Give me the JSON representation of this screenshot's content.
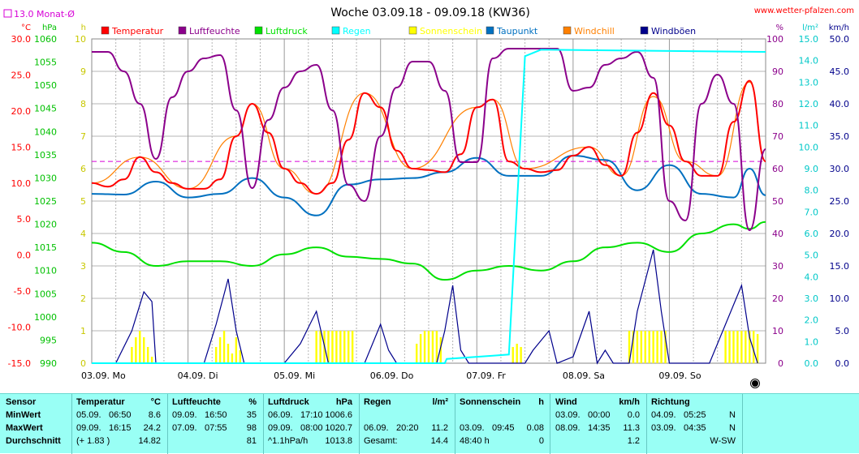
{
  "title": "Woche 03.09.18 - 09.09.18 (KW36)",
  "website": "www.wetter-pfalzen.com",
  "monthly_avg_label": "13.0 Monat-Ø",
  "units": {
    "temp": "°C",
    "press": "hPa",
    "hours": "h",
    "percent": "%",
    "rain": "l/m²",
    "wind": "km/h"
  },
  "colors": {
    "temperatur": "#ff0000",
    "luftfeuchte": "#8b008b",
    "luftdruck": "#00e000",
    "regen": "#00ffff",
    "sonnenschein": "#ffff00",
    "taupunkt": "#0070c0",
    "windchill": "#ff8000",
    "windboeen": "#00008b",
    "grid": "#b4b4b4",
    "avg_line": "#d700d7",
    "stats_bg": "#99fff5"
  },
  "chart_data": {
    "type": "line",
    "title": "Woche 03.09.18 - 09.09.18 (KW36)",
    "x_labels": [
      "03.09. Mo",
      "04.09. Di",
      "05.09. Mi",
      "06.09. Do",
      "07.09. Fr",
      "08.09. Sa",
      "09.09. So"
    ],
    "x_range_hours": [
      0,
      168
    ],
    "grid": true,
    "legend_position": "top",
    "axes": {
      "temperatur": {
        "unit": "°C",
        "ticks": [
          "30.0",
          "25.0",
          "20.0",
          "15.0",
          "10.0",
          "5.0",
          "0.0",
          "-5.0",
          "-10.0",
          "-15.0"
        ],
        "range": [
          -15,
          30
        ]
      },
      "luftdruck": {
        "unit": "hPa",
        "ticks": [
          "1060",
          "1055",
          "1050",
          "1045",
          "1040",
          "1035",
          "1030",
          "1025",
          "1020",
          "1015",
          "1010",
          "1005",
          "1000",
          "995",
          "990"
        ],
        "range": [
          990,
          1060
        ]
      },
      "sonnenschein": {
        "unit": "h",
        "ticks": [
          "10",
          "9",
          "8",
          "7",
          "6",
          "5",
          "4",
          "3",
          "2",
          "1",
          "0"
        ],
        "range": [
          0,
          10
        ]
      },
      "luftfeuchte": {
        "unit": "%",
        "ticks": [
          "100",
          "90",
          "80",
          "70",
          "60",
          "50",
          "40",
          "30",
          "20",
          "10",
          "0"
        ],
        "range": [
          0,
          100
        ]
      },
      "regen": {
        "unit": "l/m²",
        "ticks": [
          "15.0",
          "14.0",
          "13.0",
          "12.0",
          "11.0",
          "10.0",
          "9.0",
          "8.0",
          "7.0",
          "6.0",
          "5.0",
          "4.0",
          "3.0",
          "2.0",
          "1.0",
          "0.0"
        ],
        "range": [
          0,
          15
        ]
      },
      "wind": {
        "unit": "km/h",
        "ticks": [
          "50.0",
          "45.0",
          "40.0",
          "35.0",
          "30.0",
          "25.0",
          "20.0",
          "15.0",
          "10.0",
          "5.0",
          "0.0"
        ],
        "range": [
          0,
          50
        ]
      }
    },
    "monthly_avg_temp": 13.0,
    "series": [
      {
        "name": "Temperatur",
        "axis": "temperatur",
        "points": [
          [
            0,
            10.0
          ],
          [
            4,
            9.5
          ],
          [
            8,
            10.5
          ],
          [
            12,
            13.6
          ],
          [
            16,
            11.5
          ],
          [
            20,
            10.0
          ],
          [
            24,
            9.2
          ],
          [
            28,
            9.2
          ],
          [
            32,
            10.5
          ],
          [
            36,
            16.5
          ],
          [
            40,
            21.0
          ],
          [
            44,
            17.0
          ],
          [
            48,
            12.0
          ],
          [
            52,
            10.0
          ],
          [
            56,
            8.5
          ],
          [
            60,
            10.0
          ],
          [
            64,
            16.0
          ],
          [
            68,
            22.5
          ],
          [
            72,
            20.5
          ],
          [
            76,
            14.5
          ],
          [
            80,
            12.0
          ],
          [
            84,
            11.8
          ],
          [
            88,
            11.5
          ],
          [
            92,
            14.0
          ],
          [
            96,
            20.5
          ],
          [
            100,
            21.6
          ],
          [
            104,
            13.0
          ],
          [
            108,
            12.0
          ],
          [
            112,
            11.5
          ],
          [
            116,
            11.8
          ],
          [
            120,
            13.8
          ],
          [
            124,
            15.0
          ],
          [
            128,
            12.5
          ],
          [
            132,
            11.0
          ],
          [
            136,
            17.0
          ],
          [
            140,
            22.5
          ],
          [
            144,
            18.0
          ],
          [
            148,
            13.0
          ],
          [
            152,
            11.0
          ],
          [
            156,
            11.0
          ],
          [
            160,
            18.5
          ],
          [
            164,
            24.2
          ],
          [
            168,
            13.0
          ]
        ]
      },
      {
        "name": "Luftfeuchte",
        "axis": "luftfeuchte",
        "points": [
          [
            0,
            96
          ],
          [
            4,
            96
          ],
          [
            8,
            90
          ],
          [
            12,
            80
          ],
          [
            16,
            63
          ],
          [
            20,
            82
          ],
          [
            24,
            90
          ],
          [
            28,
            94
          ],
          [
            32,
            95
          ],
          [
            36,
            78
          ],
          [
            40,
            54
          ],
          [
            44,
            75
          ],
          [
            48,
            85
          ],
          [
            52,
            90
          ],
          [
            56,
            92
          ],
          [
            60,
            78
          ],
          [
            64,
            55
          ],
          [
            68,
            50
          ],
          [
            72,
            70
          ],
          [
            76,
            85
          ],
          [
            80,
            93
          ],
          [
            84,
            93
          ],
          [
            88,
            84
          ],
          [
            92,
            62
          ],
          [
            96,
            62
          ],
          [
            100,
            94
          ],
          [
            104,
            97
          ],
          [
            108,
            97
          ],
          [
            112,
            97
          ],
          [
            116,
            97
          ],
          [
            120,
            84
          ],
          [
            124,
            85
          ],
          [
            128,
            92
          ],
          [
            132,
            94
          ],
          [
            136,
            96
          ],
          [
            140,
            88
          ],
          [
            144,
            50
          ],
          [
            148,
            44
          ],
          [
            152,
            80
          ],
          [
            156,
            89
          ],
          [
            160,
            80
          ],
          [
            164,
            41
          ],
          [
            168,
            66
          ]
        ]
      },
      {
        "name": "Luftdruck",
        "axis": "luftdruck",
        "points": [
          [
            0,
            1016
          ],
          [
            8,
            1014
          ],
          [
            16,
            1011
          ],
          [
            24,
            1012
          ],
          [
            32,
            1012
          ],
          [
            40,
            1011
          ],
          [
            48,
            1013.5
          ],
          [
            56,
            1015
          ],
          [
            64,
            1013
          ],
          [
            72,
            1012.5
          ],
          [
            80,
            1011.5
          ],
          [
            88,
            1008
          ],
          [
            96,
            1010
          ],
          [
            104,
            1011
          ],
          [
            112,
            1010
          ],
          [
            120,
            1012
          ],
          [
            128,
            1015
          ],
          [
            136,
            1016
          ],
          [
            144,
            1014
          ],
          [
            152,
            1018
          ],
          [
            160,
            1020
          ],
          [
            164,
            1019
          ],
          [
            168,
            1020.5
          ]
        ]
      },
      {
        "name": "Regen",
        "axis": "regen",
        "points": [
          [
            0,
            0
          ],
          [
            88,
            0
          ],
          [
            88.5,
            0.2
          ],
          [
            100,
            0.35
          ],
          [
            104,
            0.4
          ],
          [
            108,
            14.2
          ],
          [
            112,
            14.5
          ],
          [
            168,
            14.4
          ]
        ]
      },
      {
        "name": "Taupunkt",
        "axis": "temperatur",
        "points": [
          [
            0,
            8.5
          ],
          [
            8,
            8.4
          ],
          [
            16,
            10.2
          ],
          [
            24,
            8.0
          ],
          [
            32,
            8.5
          ],
          [
            40,
            10.7
          ],
          [
            48,
            8.0
          ],
          [
            56,
            5.5
          ],
          [
            64,
            9.8
          ],
          [
            72,
            10.5
          ],
          [
            80,
            10.7
          ],
          [
            88,
            11.5
          ],
          [
            96,
            13.5
          ],
          [
            104,
            11.0
          ],
          [
            112,
            11.0
          ],
          [
            120,
            13.8
          ],
          [
            128,
            13.2
          ],
          [
            136,
            9.0
          ],
          [
            144,
            12.5
          ],
          [
            152,
            8.5
          ],
          [
            160,
            8.0
          ],
          [
            164,
            12.0
          ],
          [
            168,
            8.3
          ]
        ]
      },
      {
        "name": "Windchill",
        "axis": "temperatur",
        "points": [
          [
            0,
            10.0
          ],
          [
            12,
            13.6
          ],
          [
            24,
            9.2
          ],
          [
            36,
            16.5
          ],
          [
            40,
            21.0
          ],
          [
            48,
            12.0
          ],
          [
            56,
            8.5
          ],
          [
            68,
            22.5
          ],
          [
            80,
            12.0
          ],
          [
            96,
            20.5
          ],
          [
            100,
            21.6
          ],
          [
            108,
            12.0
          ],
          [
            124,
            15.0
          ],
          [
            132,
            11.0
          ],
          [
            140,
            22.0
          ],
          [
            148,
            13.0
          ],
          [
            156,
            11.0
          ],
          [
            164,
            24.0
          ],
          [
            168,
            13.0
          ]
        ]
      },
      {
        "name": "Windböen",
        "axis": "wind",
        "points": [
          [
            0,
            0
          ],
          [
            6,
            0
          ],
          [
            10,
            5
          ],
          [
            13,
            11
          ],
          [
            15,
            9.5
          ],
          [
            16,
            0
          ],
          [
            28,
            0
          ],
          [
            31,
            6
          ],
          [
            34,
            13
          ],
          [
            36,
            5
          ],
          [
            38,
            0
          ],
          [
            48,
            0
          ],
          [
            52,
            3
          ],
          [
            56,
            8
          ],
          [
            59,
            0
          ],
          [
            68,
            0
          ],
          [
            72,
            6
          ],
          [
            74,
            2
          ],
          [
            76,
            0
          ],
          [
            86,
            0
          ],
          [
            88,
            5
          ],
          [
            90,
            12
          ],
          [
            92,
            2
          ],
          [
            94,
            0
          ],
          [
            108,
            0
          ],
          [
            110,
            2
          ],
          [
            114,
            5
          ],
          [
            116,
            0
          ],
          [
            120,
            1
          ],
          [
            124,
            8
          ],
          [
            126,
            0
          ],
          [
            128,
            2
          ],
          [
            130,
            0
          ],
          [
            134,
            0
          ],
          [
            136,
            8
          ],
          [
            140,
            17.5
          ],
          [
            142,
            8
          ],
          [
            144,
            0
          ],
          [
            154,
            0
          ],
          [
            158,
            6
          ],
          [
            162,
            12
          ],
          [
            164,
            4
          ],
          [
            166,
            0
          ]
        ]
      }
    ],
    "sunshine_bars": {
      "name": "Sonnenschein",
      "axis": "sonnenschein",
      "hours": [
        [
          10,
          0.5
        ],
        [
          11,
          0.8
        ],
        [
          12,
          1.0
        ],
        [
          13,
          0.8
        ],
        [
          14,
          0.5
        ],
        [
          15,
          0.2
        ],
        [
          31,
          0.5
        ],
        [
          32,
          0.8
        ],
        [
          33,
          1.0
        ],
        [
          34,
          0.6
        ],
        [
          35,
          0.3
        ],
        [
          36,
          0.8
        ],
        [
          37,
          0.4
        ],
        [
          56,
          1.0
        ],
        [
          57,
          1.0
        ],
        [
          58,
          1.0
        ],
        [
          59,
          1.0
        ],
        [
          60,
          1.0
        ],
        [
          61,
          1.0
        ],
        [
          62,
          1.0
        ],
        [
          63,
          1.0
        ],
        [
          64,
          1.0
        ],
        [
          65,
          1.0
        ],
        [
          81,
          0.6
        ],
        [
          82,
          0.9
        ],
        [
          83,
          1.0
        ],
        [
          84,
          1.0
        ],
        [
          85,
          1.0
        ],
        [
          86,
          1.0
        ],
        [
          87,
          0.8
        ],
        [
          105,
          0.5
        ],
        [
          106,
          0.6
        ],
        [
          107,
          0.5
        ],
        [
          134,
          1.0
        ],
        [
          135,
          1.0
        ],
        [
          136,
          1.0
        ],
        [
          137,
          1.0
        ],
        [
          138,
          1.0
        ],
        [
          139,
          1.0
        ],
        [
          140,
          1.0
        ],
        [
          141,
          1.0
        ],
        [
          142,
          1.0
        ],
        [
          143,
          1.0
        ],
        [
          158,
          1.0
        ],
        [
          159,
          1.0
        ],
        [
          160,
          1.0
        ],
        [
          161,
          1.0
        ],
        [
          162,
          1.0
        ],
        [
          163,
          1.0
        ],
        [
          164,
          1.0
        ],
        [
          165,
          1.0
        ],
        [
          166,
          0.9
        ]
      ]
    }
  },
  "stats": {
    "sensor": {
      "header": "Sensor",
      "rows": [
        "MinWert",
        "MaxWert",
        "Durchschnitt"
      ]
    },
    "temperatur": {
      "header": "Temperatur",
      "unit": "°C",
      "r1_date": "05.09.",
      "r1_time": "06:50",
      "r1_val": "8.6",
      "r2_date": "09.09.",
      "r2_time": "16:15",
      "r2_val": "24.2",
      "r3_left": "(+ 1.83 )",
      "r3_val": "14.82"
    },
    "luftfeuchte": {
      "header": "Luftfeuchte",
      "unit": "%",
      "r1_date": "09.09.",
      "r1_time": "16:50",
      "r1_val": "35",
      "r2_date": "07.09.",
      "r2_time": "07:55",
      "r2_val": "98",
      "r3_val": "81"
    },
    "luftdruck": {
      "header": "Luftdruck",
      "unit": "hPa",
      "r1_date": "06.09.",
      "r1_time": "17:10",
      "r1_val": "1006.6",
      "r2_date": "09.09.",
      "r2_time": "08:00",
      "r2_val": "1020.7",
      "r3_left": "^1.1hPa/h",
      "r3_val": "1013.8"
    },
    "regen": {
      "header": "Regen",
      "unit": "l/m²",
      "r2_date": "06.09.",
      "r2_time": "20:20",
      "r2_val": "11.2",
      "r3_left": "Gesamt:",
      "r3_val": "14.4"
    },
    "sonnenschein": {
      "header": "Sonnenschein",
      "unit": "h",
      "r2_date": "03.09.",
      "r2_time": "09:45",
      "r2_val": "0.08",
      "r3_left": "48:40 h",
      "r3_val": "0"
    },
    "wind": {
      "header": "Wind",
      "unit": "km/h",
      "r1_date": "03.09.",
      "r1_time": "00:00",
      "r1_val": "0.0",
      "r2_date": "08.09.",
      "r2_time": "14:35",
      "r2_val": "11.3",
      "r3_val": "1.2"
    },
    "richtung": {
      "header": "Richtung",
      "r1_date": "04.09.",
      "r1_time": "05:25",
      "r1_val": "N",
      "r2_date": "03.09.",
      "r2_time": "04:35",
      "r2_val": "N",
      "r3_val": "W-SW"
    }
  }
}
